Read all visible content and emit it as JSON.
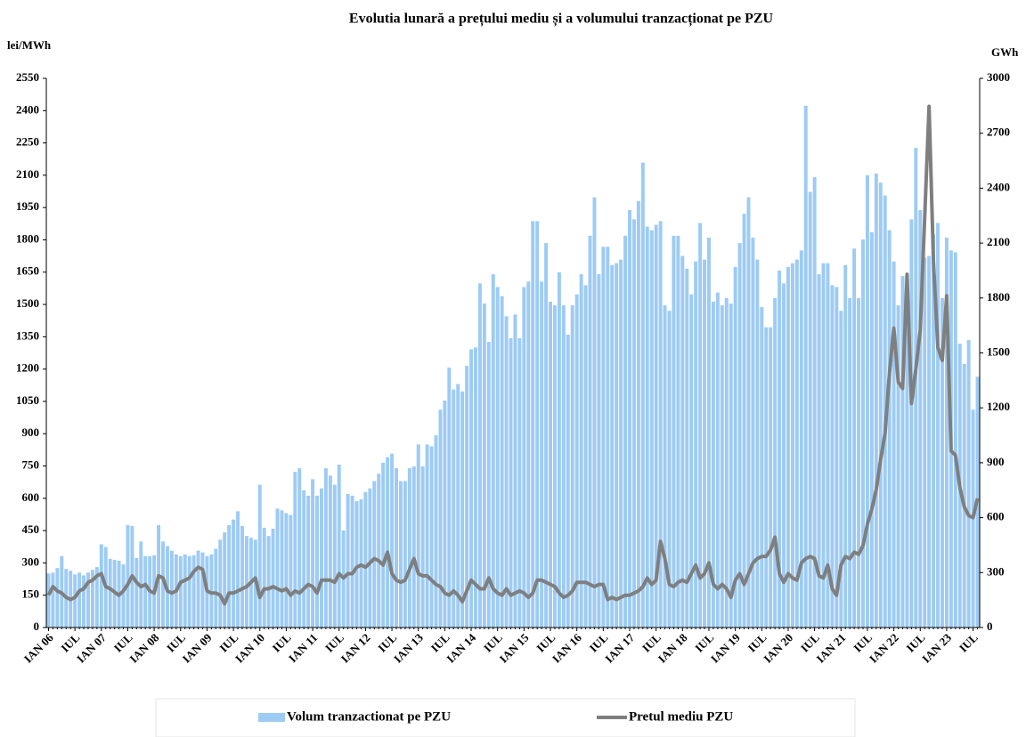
{
  "chart_data": {
    "type": "combo",
    "title": "Evolutia lunară a prețului mediu și a volumului tranzacționat pe PZU",
    "y_label": "lei/MWh",
    "y2_label": "GWh",
    "ylim": [
      0,
      2550
    ],
    "yticks": [
      0,
      150,
      300,
      450,
      600,
      750,
      900,
      1050,
      1200,
      1350,
      1500,
      1650,
      1800,
      1950,
      2100,
      2250,
      2400,
      2550
    ],
    "y2lim": [
      0,
      3000
    ],
    "y2ticks": [
      0,
      300,
      600,
      900,
      1200,
      1500,
      1800,
      2100,
      2400,
      2700,
      3000
    ],
    "legend": "bottom",
    "categories": [
      "IAN 06",
      null,
      null,
      null,
      null,
      null,
      "IUL",
      null,
      null,
      null,
      null,
      null,
      "IAN 07",
      null,
      null,
      null,
      null,
      null,
      "IUL",
      null,
      null,
      null,
      null,
      null,
      "IAN 08",
      null,
      null,
      null,
      null,
      null,
      "IUL",
      null,
      null,
      null,
      null,
      null,
      "IAN 09",
      null,
      null,
      null,
      null,
      null,
      "IUL",
      null,
      null,
      null,
      null,
      null,
      "IAN 10",
      null,
      null,
      null,
      null,
      null,
      "IUL",
      null,
      null,
      null,
      null,
      null,
      "IAN 11",
      null,
      null,
      null,
      null,
      null,
      "IUL",
      null,
      null,
      null,
      null,
      null,
      "IAN 12",
      null,
      null,
      null,
      null,
      null,
      "IUL",
      null,
      null,
      null,
      null,
      null,
      "IAN 13",
      null,
      null,
      null,
      null,
      null,
      "IUL",
      null,
      null,
      null,
      null,
      null,
      "IAN 14",
      null,
      null,
      null,
      null,
      null,
      "IUL",
      null,
      null,
      null,
      null,
      null,
      "IAN 15",
      null,
      null,
      null,
      null,
      null,
      "IUL",
      null,
      null,
      null,
      null,
      null,
      "IAN 16",
      null,
      null,
      null,
      null,
      null,
      "IUL",
      null,
      null,
      null,
      null,
      null,
      "IAN 17",
      null,
      null,
      null,
      null,
      null,
      "IUL",
      null,
      null,
      null,
      null,
      null,
      "IAN 18",
      null,
      null,
      null,
      null,
      null,
      "IUL",
      null,
      null,
      null,
      null,
      null,
      "IAN 19",
      null,
      null,
      null,
      null,
      null,
      "IUL",
      null,
      null,
      null,
      null,
      null,
      "IAN 20",
      null,
      null,
      null,
      null,
      null,
      "IUL",
      null,
      null,
      null,
      null,
      null,
      "IAN 21",
      null,
      null,
      null,
      null,
      null,
      "IUL",
      null,
      null,
      null,
      null,
      null,
      "IAN 22",
      null,
      null,
      null,
      null,
      null,
      "IUL",
      null,
      null,
      null,
      null,
      null,
      "IAN 23",
      null,
      null,
      null,
      null,
      null,
      "IUL",
      null
    ],
    "series": [
      {
        "name": "Volum tranzactionat pe PZU",
        "type": "bar",
        "axis": "y2",
        "color": "#9dcbf4",
        "values": [
          295,
          300,
          325,
          390,
          320,
          310,
          290,
          300,
          285,
          300,
          315,
          330,
          455,
          440,
          375,
          370,
          365,
          345,
          560,
          555,
          380,
          470,
          390,
          390,
          395,
          560,
          470,
          445,
          420,
          400,
          390,
          400,
          390,
          395,
          420,
          410,
          390,
          400,
          430,
          480,
          520,
          560,
          590,
          635,
          555,
          500,
          490,
          480,
          780,
          545,
          500,
          540,
          650,
          640,
          625,
          615,
          850,
          870,
          750,
          720,
          810,
          720,
          760,
          870,
          830,
          780,
          890,
          530,
          730,
          720,
          690,
          700,
          740,
          760,
          800,
          840,
          900,
          930,
          950,
          870,
          800,
          800,
          870,
          880,
          1000,
          880,
          1000,
          990,
          1050,
          1190,
          1240,
          1420,
          1300,
          1330,
          1290,
          1430,
          1520,
          1530,
          1880,
          1770,
          1560,
          1930,
          1860,
          1810,
          1700,
          1580,
          1710,
          1580,
          1860,
          1890,
          2220,
          2220,
          1890,
          2100,
          1780,
          1760,
          1940,
          1760,
          1600,
          1760,
          1820,
          1930,
          1870,
          2140,
          2350,
          1930,
          2080,
          2080,
          1980,
          1990,
          2010,
          2140,
          2280,
          2230,
          2330,
          2540,
          2190,
          2170,
          2200,
          2220,
          1760,
          1730,
          2140,
          2140,
          2030,
          1960,
          1820,
          2000,
          2210,
          2010,
          2130,
          1780,
          1830,
          1760,
          1800,
          1770,
          1970,
          2100,
          2260,
          2350,
          2130,
          2010,
          1750,
          1640,
          1640,
          1800,
          1950,
          1880,
          1970,
          1990,
          2010,
          2060,
          2850,
          2380,
          2460,
          1930,
          1990,
          1990,
          1870,
          1860,
          1730,
          1980,
          1800,
          2070,
          1800,
          2120,
          2470,
          2160,
          2480,
          2430,
          2360,
          2170,
          2000,
          1760,
          1920,
          1910,
          2230,
          2620,
          2280,
          2020,
          2030,
          2150,
          2210,
          1800,
          2130,
          2060,
          2050,
          1550,
          1440,
          1570,
          1190,
          1370
        ]
      },
      {
        "name": "Pretul mediu PZU",
        "type": "line",
        "axis": "y",
        "color": "#7f7f7f",
        "values": [
          150,
          190,
          170,
          160,
          140,
          130,
          140,
          170,
          180,
          210,
          220,
          240,
          250,
          190,
          180,
          165,
          150,
          170,
          200,
          240,
          210,
          190,
          200,
          170,
          160,
          240,
          230,
          170,
          160,
          170,
          210,
          220,
          230,
          260,
          280,
          270,
          170,
          160,
          160,
          150,
          110,
          160,
          160,
          170,
          180,
          190,
          210,
          230,
          140,
          180,
          180,
          190,
          180,
          170,
          180,
          150,
          170,
          160,
          180,
          200,
          190,
          160,
          220,
          220,
          220,
          210,
          250,
          230,
          250,
          250,
          280,
          290,
          280,
          300,
          320,
          310,
          290,
          350,
          250,
          220,
          210,
          220,
          270,
          320,
          250,
          240,
          240,
          220,
          200,
          190,
          160,
          150,
          170,
          150,
          120,
          170,
          220,
          200,
          180,
          180,
          230,
          180,
          160,
          150,
          180,
          150,
          160,
          170,
          160,
          140,
          160,
          220,
          220,
          210,
          200,
          190,
          160,
          140,
          150,
          170,
          210,
          210,
          210,
          200,
          190,
          200,
          200,
          130,
          140,
          130,
          140,
          150,
          150,
          160,
          170,
          190,
          230,
          200,
          220,
          400,
          320,
          200,
          190,
          210,
          220,
          210,
          250,
          290,
          230,
          250,
          300,
          200,
          180,
          200,
          180,
          140,
          220,
          250,
          200,
          250,
          300,
          320,
          330,
          330,
          360,
          420,
          250,
          210,
          250,
          230,
          220,
          300,
          320,
          330,
          320,
          240,
          230,
          290,
          180,
          150,
          290,
          330,
          320,
          350,
          340,
          380,
          480,
          550,
          640,
          780,
          900,
          1180,
          1390,
          1140,
          1110,
          1640,
          1040,
          1200,
          1380,
          1900,
          2420,
          1700,
          1300,
          1240,
          1540,
          820,
          800,
          650,
          560,
          520,
          510,
          600
        ]
      }
    ]
  }
}
